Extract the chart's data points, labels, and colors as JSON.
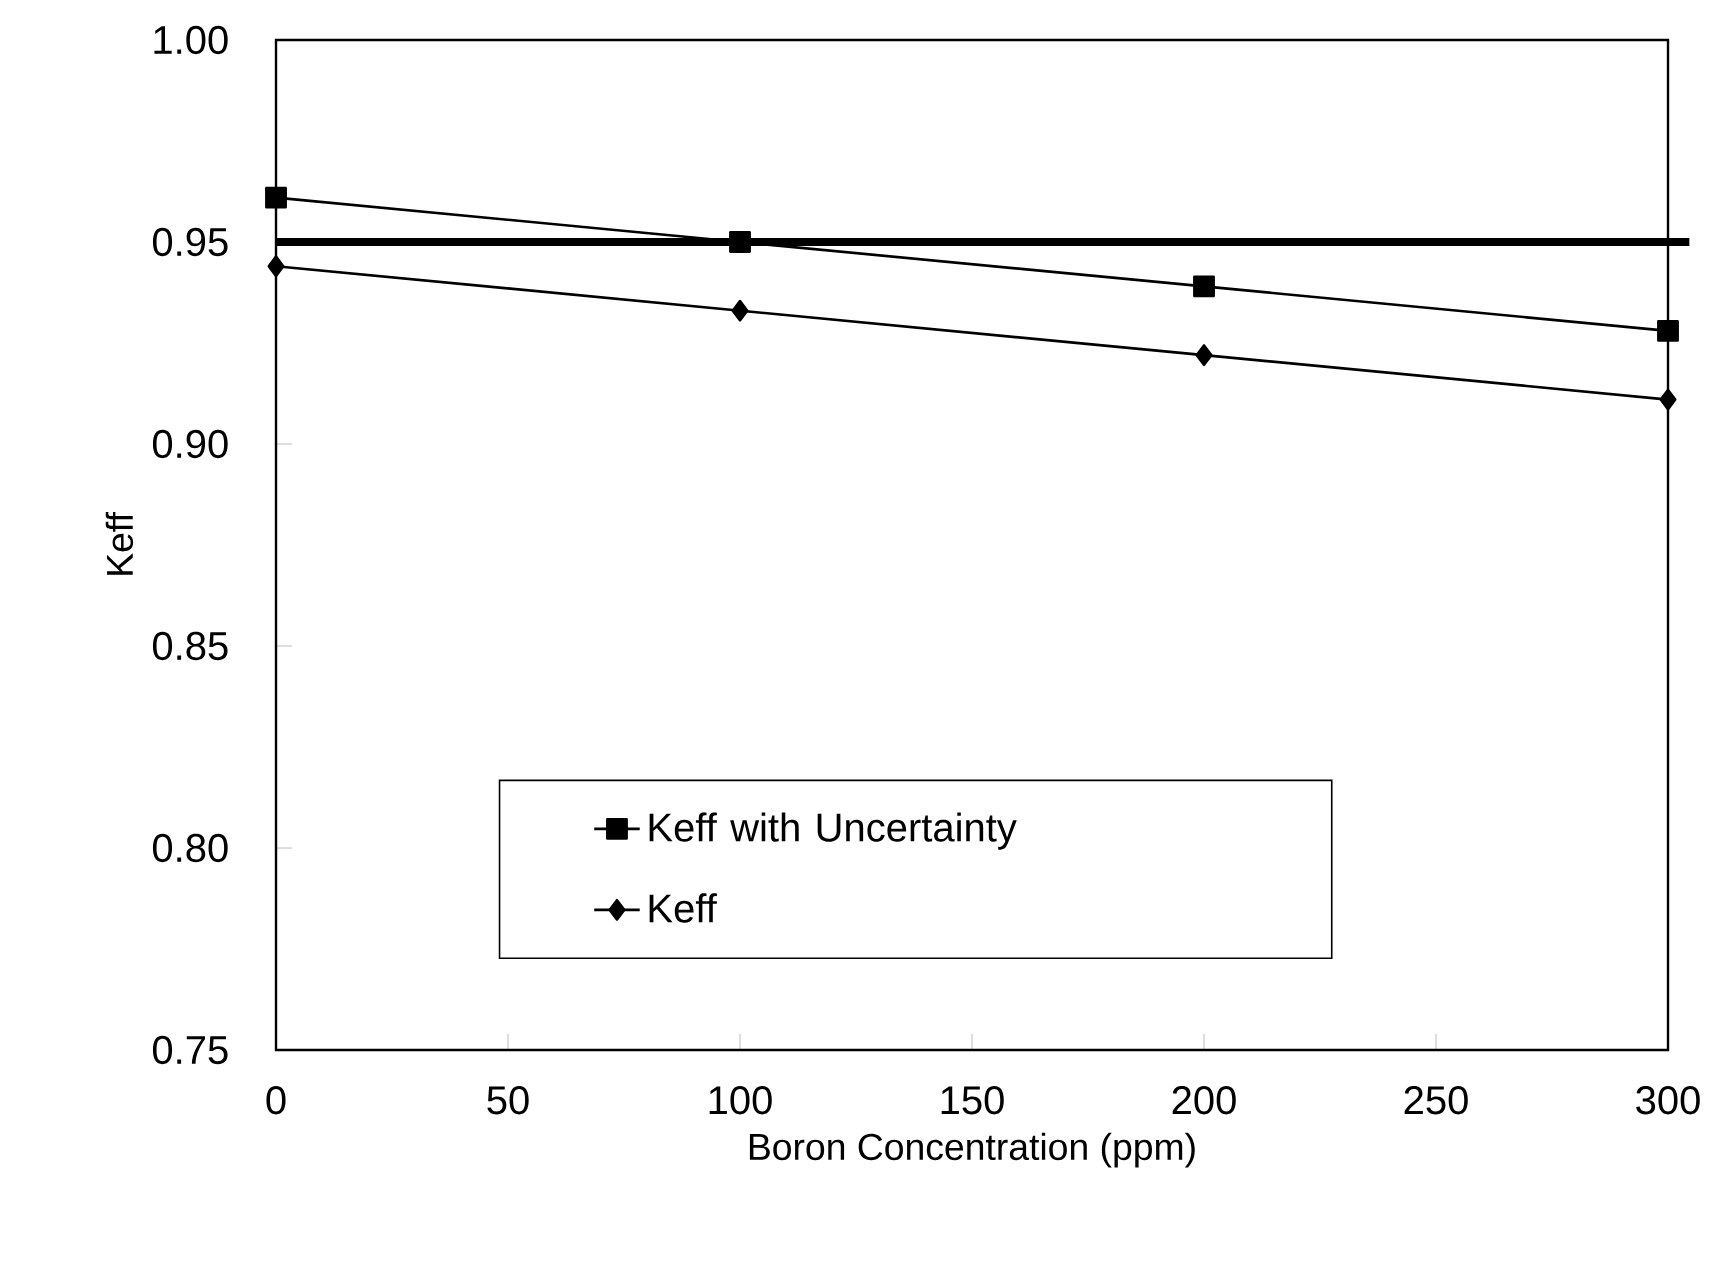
{
  "chart_data": {
    "type": "line",
    "xlabel": "Boron Concentration (ppm)",
    "ylabel": "Keff",
    "x": [
      0,
      100,
      200,
      300
    ],
    "series": [
      {
        "name": "Keff with Uncertainty",
        "color": "#000000",
        "marker": "square",
        "values": [
          0.961,
          0.95,
          0.939,
          0.928
        ]
      },
      {
        "name": "Keff",
        "color": "#000000",
        "marker": "diamond",
        "values": [
          0.944,
          0.933,
          0.922,
          0.911
        ]
      }
    ],
    "xlim": [
      0,
      300
    ],
    "xticks": [
      0,
      50,
      100,
      150,
      200,
      250,
      300
    ],
    "ylim": [
      0.75,
      1.0
    ],
    "yticks": [
      {
        "value": 0.75,
        "label": "0.75"
      },
      {
        "value": 0.8,
        "label": "0.80"
      },
      {
        "value": 0.85,
        "label": "0.85"
      },
      {
        "value": 0.9,
        "label": "0.90"
      },
      {
        "value": 0.95,
        "label": "0.95"
      },
      {
        "value": 1.0,
        "label": "1.00"
      }
    ],
    "ref_lines": [
      {
        "axis": "y",
        "value": 0.95,
        "color": "#000000",
        "line_style": "solid"
      }
    ],
    "grid": false,
    "legend": "bottom",
    "line_style": "solid"
  }
}
